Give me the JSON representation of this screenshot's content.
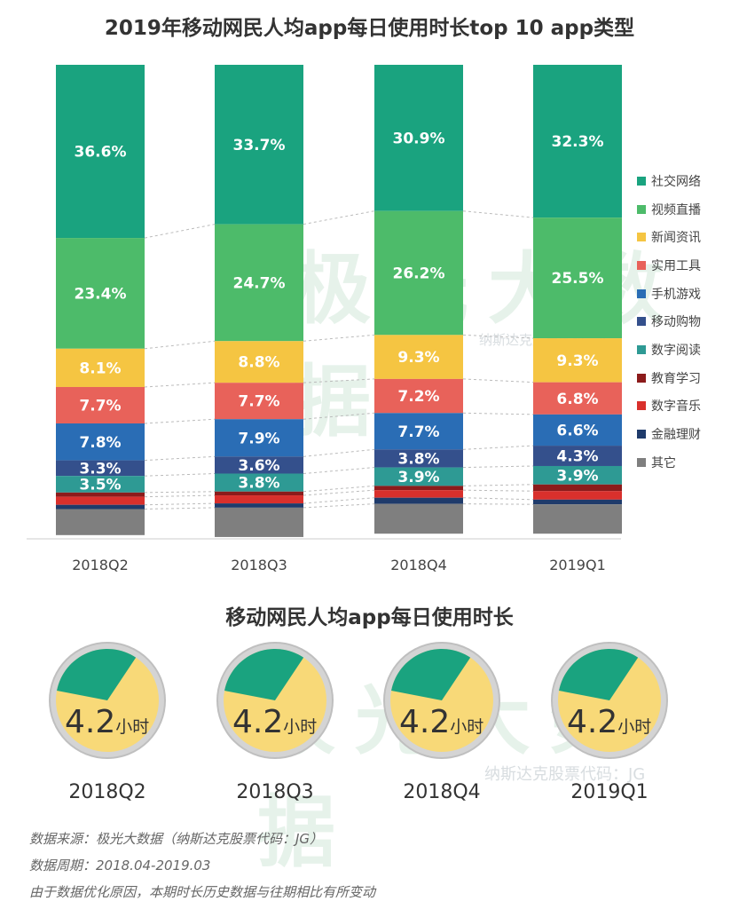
{
  "chart_data": [
    {
      "type": "bar",
      "stacked": true,
      "title": "2019年移动网民人均app每日使用时长top 10 app类型",
      "categories": [
        "2018Q2",
        "2018Q3",
        "2018Q4",
        "2019Q1"
      ],
      "ylim": [
        0,
        100
      ],
      "grid": false,
      "legend": "right",
      "series": [
        {
          "name": "社交网络",
          "color": "#1aa37f",
          "values": [
            36.6,
            33.7,
            30.9,
            32.3
          ],
          "labels": [
            "36.6%",
            "33.7%",
            "30.9%",
            "32.3%"
          ]
        },
        {
          "name": "视频直播",
          "color": "#4dbb6a",
          "values": [
            23.4,
            24.7,
            26.2,
            25.5
          ],
          "labels": [
            "23.4%",
            "24.7%",
            "26.2%",
            "25.5%"
          ]
        },
        {
          "name": "新闻资讯",
          "color": "#f5c542",
          "values": [
            8.1,
            8.8,
            9.3,
            9.3
          ],
          "labels": [
            "8.1%",
            "8.8%",
            "9.3%",
            "9.3%"
          ]
        },
        {
          "name": "实用工具",
          "color": "#e8625a",
          "values": [
            7.7,
            7.7,
            7.2,
            6.8
          ],
          "labels": [
            "7.7%",
            "7.7%",
            "7.2%",
            "6.8%"
          ]
        },
        {
          "name": "手机游戏",
          "color": "#2a6db5",
          "values": [
            7.8,
            7.9,
            7.7,
            6.6
          ],
          "labels": [
            "7.8%",
            "7.9%",
            "7.7%",
            "6.6%"
          ]
        },
        {
          "name": "移动购物",
          "color": "#34508c",
          "values": [
            3.3,
            3.6,
            3.8,
            4.3
          ],
          "labels": [
            "3.3%",
            "3.6%",
            "3.8%",
            "4.3%"
          ]
        },
        {
          "name": "数字阅读",
          "color": "#2e9a94",
          "values": [
            3.5,
            3.8,
            3.9,
            3.9
          ],
          "labels": [
            "3.5%",
            "3.8%",
            "3.9%",
            "3.9%"
          ]
        },
        {
          "name": "教育学习",
          "color": "#8c1b1b",
          "values": [
            0.9,
            0.8,
            0.9,
            1.4
          ],
          "labels": [
            "",
            "",
            "",
            ""
          ]
        },
        {
          "name": "数字音乐",
          "color": "#d9302c",
          "values": [
            1.7,
            1.7,
            1.6,
            1.8
          ],
          "labels": [
            "",
            "",
            "",
            ""
          ]
        },
        {
          "name": "金融理财",
          "color": "#1f3b6b",
          "values": [
            0.9,
            0.9,
            1.3,
            1.0
          ],
          "labels": [
            "",
            "",
            "",
            ""
          ]
        },
        {
          "name": "其它",
          "color": "#7f7f7f",
          "values": [
            5.5,
            6.2,
            6.3,
            6.2
          ],
          "labels": [
            "",
            "",
            "",
            ""
          ]
        }
      ]
    },
    {
      "type": "pie",
      "title": "移动网民人均app每日使用时长",
      "categories": [
        "2018Q2",
        "2018Q3",
        "2018Q4",
        "2019Q1"
      ],
      "values": [
        4.2,
        4.2,
        4.2,
        4.2
      ],
      "value_labels": [
        "4.2",
        "4.2",
        "4.2",
        "4.2"
      ],
      "unit": "小时",
      "highlight_fraction": 0.17,
      "colors": {
        "highlight": "#1aa37f",
        "base": "#f8d978",
        "ring": "#c8c8c8"
      }
    }
  ],
  "watermark": {
    "brand": "极光大数据",
    "sub": "纳斯达克股票代码：JG"
  },
  "notes": [
    "数据来源：极光大数据（纳斯达克股票代码：JG）",
    "数据周期：2018.04-2019.03",
    "由于数据优化原因，本期时长历史数据与往期相比有所变动"
  ]
}
